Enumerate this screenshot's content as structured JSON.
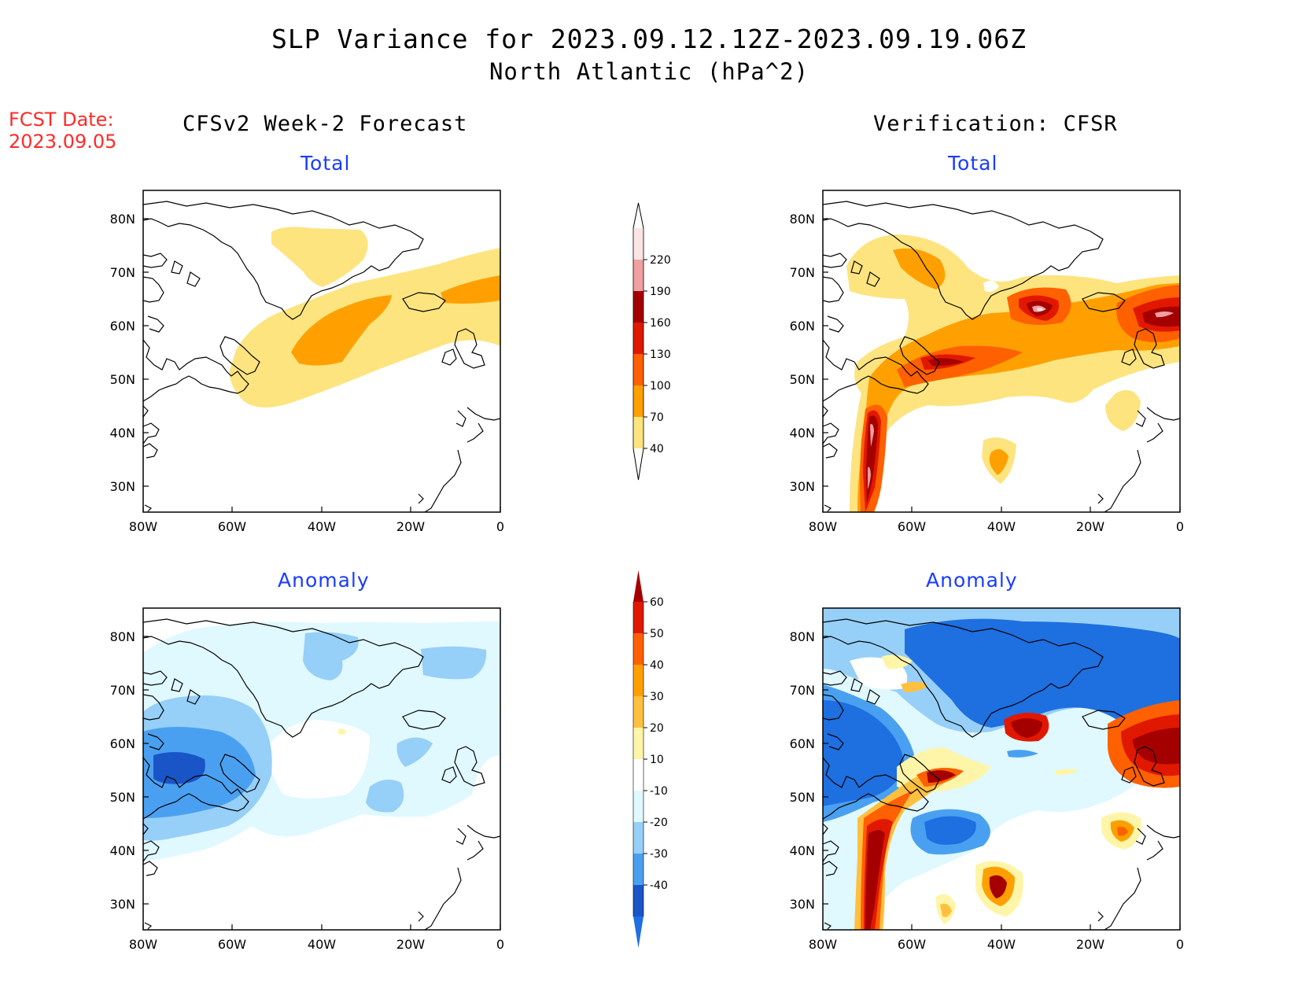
{
  "header": {
    "title": "SLP Variance for 2023.09.12.12Z-2023.09.19.06Z",
    "subtitle": "North Atlantic (hPa^2)"
  },
  "fcst_date": {
    "label": "FCST Date:",
    "value": "2023.09.05"
  },
  "columns": {
    "left_title": "CFSv2 Week-2 Forecast",
    "right_title": "Verification: CFSR"
  },
  "panels": {
    "total_label": "Total",
    "anomaly_label": "Anomaly",
    "forecast_total": "Total",
    "forecast_anomaly": "Anomaly",
    "verification_total": "Total",
    "verification_anomaly": "Anomaly"
  },
  "axes": {
    "lat_labels": [
      "80N",
      "70N",
      "60N",
      "50N",
      "40N",
      "30N"
    ],
    "lon_labels": [
      "80W",
      "60W",
      "40W",
      "20W",
      "0"
    ]
  },
  "colorbars": {
    "total": {
      "labels": [
        "40",
        "70",
        "100",
        "130",
        "160",
        "190",
        "220"
      ],
      "colors": [
        "#fde47f",
        "#ffa000",
        "#ff6000",
        "#e11800",
        "#a50000",
        "#f0a0a0",
        "#fbe4e4"
      ]
    },
    "anomaly": {
      "labels": [
        "-40",
        "-30",
        "-20",
        "-10",
        "10",
        "20",
        "30",
        "40",
        "50",
        "60"
      ],
      "colors": [
        "#1e6fe0",
        "#1a55c8",
        "#4aa0f0",
        "#96cff8",
        "#e0f8ff",
        "#ffffff",
        "#fff5a8",
        "#ffc040",
        "#ffa000",
        "#ff6000",
        "#e11800",
        "#a50000"
      ]
    }
  }
}
